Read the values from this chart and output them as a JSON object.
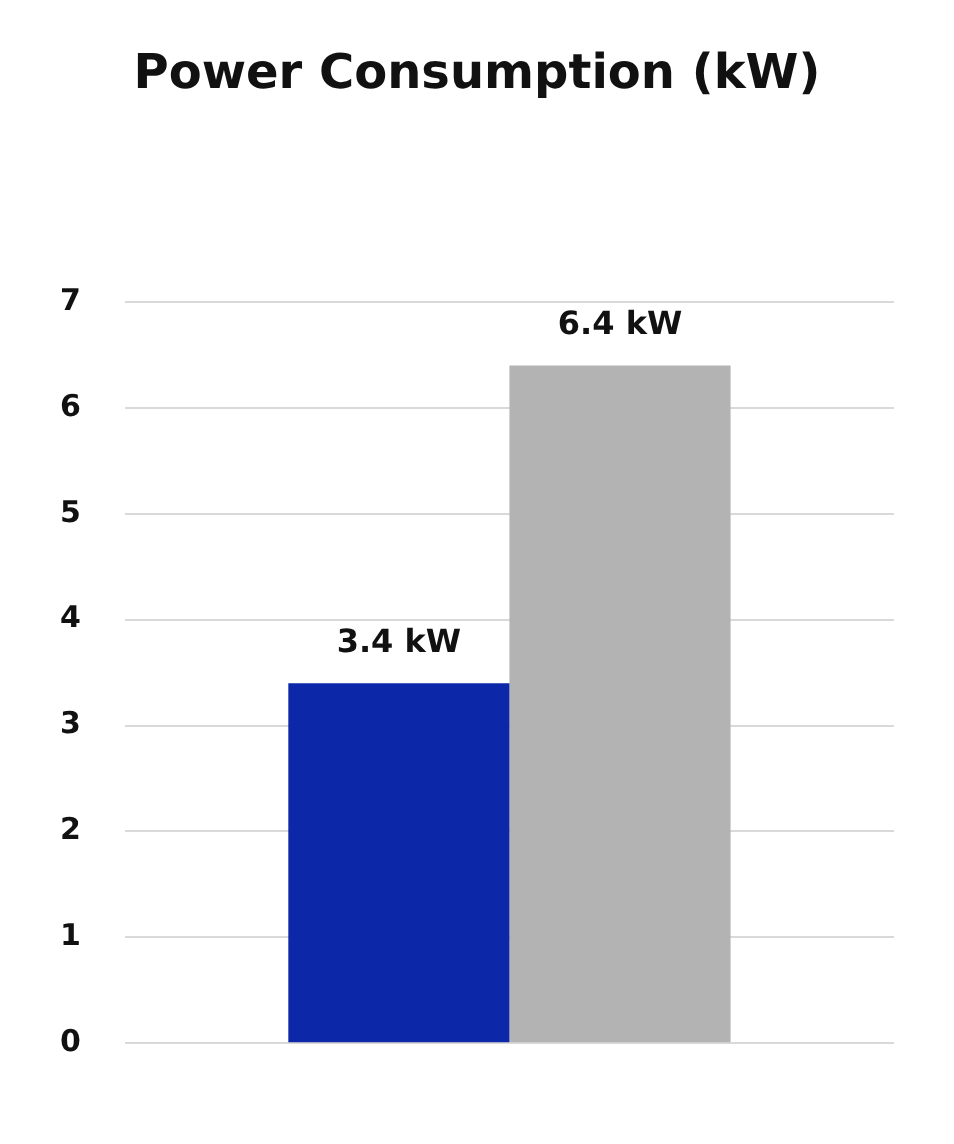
{
  "chart_data": {
    "type": "bar",
    "title": "Power Consumption (kW)",
    "categories": [
      null
    ],
    "series": [
      {
        "color": "#0c27a8",
        "values": [
          3.4
        ],
        "value_labels": [
          "3.4 kW"
        ]
      },
      {
        "color": "#b3b3b3",
        "values": [
          6.4
        ],
        "value_labels": [
          "6.4 kW"
        ]
      }
    ],
    "ylim": [
      0,
      7
    ],
    "yticks": [
      0,
      1,
      2,
      3,
      4,
      5,
      6,
      7
    ],
    "grid": "y",
    "legend": false
  }
}
